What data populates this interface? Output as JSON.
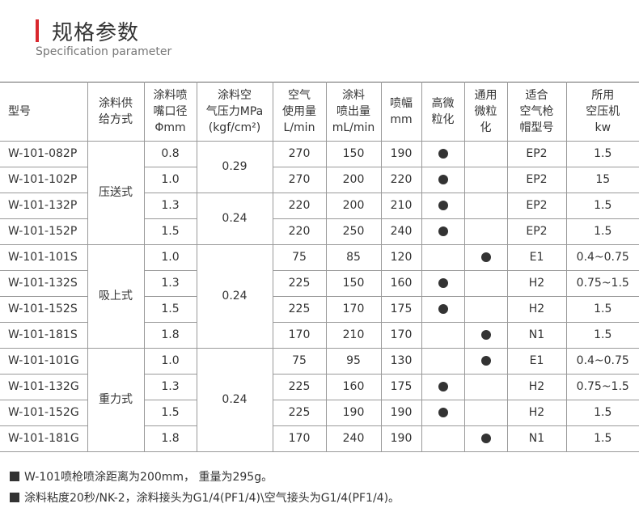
{
  "header": {
    "title": "规格参数",
    "subtitle": "Specification parameter"
  },
  "table": {
    "headers": [
      [
        "型号"
      ],
      [
        "涂料供",
        "给方式"
      ],
      [
        "涂料喷",
        "嘴口径",
        "Φmm"
      ],
      [
        "涂料空",
        "气压力MPa",
        "(kgf/cm²)"
      ],
      [
        "空气",
        "使用量",
        "L/min"
      ],
      [
        "涂料",
        "喷出量",
        "mL/min"
      ],
      [
        "喷幅",
        "mm"
      ],
      [
        "高微",
        "粒化"
      ],
      [
        "通用",
        "微粒",
        "化"
      ],
      [
        "适合",
        "空气枪",
        "帽型号"
      ],
      [
        "所用",
        "空压机",
        "kw"
      ]
    ],
    "supply_groups": [
      {
        "label": "压送式",
        "rows": 4
      },
      {
        "label": "吸上式",
        "rows": 4
      },
      {
        "label": "重力式",
        "rows": 4
      }
    ],
    "pressure_groups": [
      {
        "label": "0.29",
        "rows": 2
      },
      {
        "label": "0.24",
        "rows": 2
      },
      {
        "label": "0.24",
        "rows": 4
      },
      {
        "label": "0.24",
        "rows": 4
      }
    ],
    "rows": [
      {
        "model": "W-101-082P",
        "nozzle": "0.8",
        "air": "270",
        "paint": "150",
        "width": "190",
        "high_atom": true,
        "general_atom": false,
        "cap": "EP2",
        "compressor": "1.5"
      },
      {
        "model": "W-101-102P",
        "nozzle": "1.0",
        "air": "270",
        "paint": "200",
        "width": "220",
        "high_atom": true,
        "general_atom": false,
        "cap": "EP2",
        "compressor": "15"
      },
      {
        "model": "W-101-132P",
        "nozzle": "1.3",
        "air": "220",
        "paint": "200",
        "width": "210",
        "high_atom": true,
        "general_atom": false,
        "cap": "EP2",
        "compressor": "1.5"
      },
      {
        "model": "W-101-152P",
        "nozzle": "1.5",
        "air": "220",
        "paint": "250",
        "width": "240",
        "high_atom": true,
        "general_atom": false,
        "cap": "EP2",
        "compressor": "1.5"
      },
      {
        "model": "W-101-101S",
        "nozzle": "1.0",
        "air": "75",
        "paint": "85",
        "width": "120",
        "high_atom": false,
        "general_atom": true,
        "cap": "E1",
        "compressor": "0.4~0.75"
      },
      {
        "model": "W-101-132S",
        "nozzle": "1.3",
        "air": "225",
        "paint": "150",
        "width": "160",
        "high_atom": true,
        "general_atom": false,
        "cap": "H2",
        "compressor": "0.75~1.5"
      },
      {
        "model": "W-101-152S",
        "nozzle": "1.5",
        "air": "225",
        "paint": "170",
        "width": "175",
        "high_atom": true,
        "general_atom": false,
        "cap": "H2",
        "compressor": "1.5"
      },
      {
        "model": "W-101-181S",
        "nozzle": "1.8",
        "air": "170",
        "paint": "210",
        "width": "170",
        "high_atom": false,
        "general_atom": true,
        "cap": "N1",
        "compressor": "1.5"
      },
      {
        "model": "W-101-101G",
        "nozzle": "1.0",
        "air": "75",
        "paint": "95",
        "width": "130",
        "high_atom": false,
        "general_atom": true,
        "cap": "E1",
        "compressor": "0.4~0.75"
      },
      {
        "model": "W-101-132G",
        "nozzle": "1.3",
        "air": "225",
        "paint": "160",
        "width": "175",
        "high_atom": true,
        "general_atom": false,
        "cap": "H2",
        "compressor": "0.75~1.5"
      },
      {
        "model": "W-101-152G",
        "nozzle": "1.5",
        "air": "225",
        "paint": "190",
        "width": "190",
        "high_atom": true,
        "general_atom": false,
        "cap": "H2",
        "compressor": "1.5"
      },
      {
        "model": "W-101-181G",
        "nozzle": "1.8",
        "air": "170",
        "paint": "240",
        "width": "190",
        "high_atom": false,
        "general_atom": true,
        "cap": "N1",
        "compressor": "1.5"
      }
    ]
  },
  "notes": [
    "W-101喷枪喷涂距离为200mm， 重量为295g。",
    "涂料粘度20秒/NK-2，涂料接头为G1/4(PF1/4)\\空气接头为G1/4(PF1/4)。"
  ],
  "colors": {
    "accent": "#d9272e",
    "text": "#333333",
    "border": "#999999"
  }
}
